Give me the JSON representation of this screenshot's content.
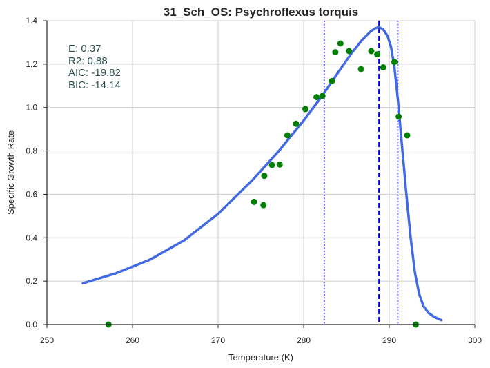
{
  "chart_data": {
    "type": "scatter",
    "title": "31_Sch_OS: Psychroflexus torquis",
    "xlabel": "Temperature (K)",
    "ylabel": "Specific Growth Rate",
    "xlim": [
      250,
      300
    ],
    "ylim": [
      0.0,
      1.4
    ],
    "xticks": [
      250,
      260,
      270,
      280,
      290,
      300
    ],
    "yticks": [
      0.0,
      0.2,
      0.4,
      0.6,
      0.8,
      1.0,
      1.2,
      1.4
    ],
    "grid": true,
    "colors": {
      "points": "#008000",
      "fit": "#4169e1",
      "vlines": "#0000ff",
      "grid": "#cccccc",
      "axes": "#262626",
      "annotation": "#2f4f4f"
    },
    "annotations": [
      "E:  0.37",
      "R2:  0.88",
      "AIC: -19.82",
      "BIC: -14.14"
    ],
    "points": [
      {
        "x": 257.2,
        "y": 0.0
      },
      {
        "x": 274.2,
        "y": 0.565
      },
      {
        "x": 275.3,
        "y": 0.55
      },
      {
        "x": 275.4,
        "y": 0.685
      },
      {
        "x": 276.3,
        "y": 0.735
      },
      {
        "x": 277.2,
        "y": 0.737
      },
      {
        "x": 278.1,
        "y": 0.872
      },
      {
        "x": 279.1,
        "y": 0.925
      },
      {
        "x": 280.2,
        "y": 0.993
      },
      {
        "x": 281.5,
        "y": 1.048
      },
      {
        "x": 282.2,
        "y": 1.053
      },
      {
        "x": 283.3,
        "y": 1.122
      },
      {
        "x": 283.7,
        "y": 1.255
      },
      {
        "x": 284.3,
        "y": 1.295
      },
      {
        "x": 285.3,
        "y": 1.26
      },
      {
        "x": 286.7,
        "y": 1.177
      },
      {
        "x": 287.9,
        "y": 1.26
      },
      {
        "x": 288.6,
        "y": 1.245
      },
      {
        "x": 289.3,
        "y": 1.185
      },
      {
        "x": 290.6,
        "y": 1.21
      },
      {
        "x": 291.1,
        "y": 0.958
      },
      {
        "x": 292.1,
        "y": 0.872
      },
      {
        "x": 293.1,
        "y": 0.0
      }
    ],
    "fit_curve": [
      {
        "x": 254.2,
        "y": 0.19
      },
      {
        "x": 258.0,
        "y": 0.235
      },
      {
        "x": 262.0,
        "y": 0.298
      },
      {
        "x": 266.0,
        "y": 0.387
      },
      {
        "x": 270.0,
        "y": 0.51
      },
      {
        "x": 274.0,
        "y": 0.665
      },
      {
        "x": 277.0,
        "y": 0.795
      },
      {
        "x": 280.0,
        "y": 0.94
      },
      {
        "x": 282.0,
        "y": 1.045
      },
      {
        "x": 284.0,
        "y": 1.16
      },
      {
        "x": 285.5,
        "y": 1.245
      },
      {
        "x": 286.8,
        "y": 1.31
      },
      {
        "x": 287.8,
        "y": 1.35
      },
      {
        "x": 288.4,
        "y": 1.366
      },
      {
        "x": 288.8,
        "y": 1.37
      },
      {
        "x": 289.3,
        "y": 1.36
      },
      {
        "x": 289.8,
        "y": 1.33
      },
      {
        "x": 290.2,
        "y": 1.28
      },
      {
        "x": 290.6,
        "y": 1.19
      },
      {
        "x": 291.0,
        "y": 1.04
      },
      {
        "x": 291.5,
        "y": 0.82
      },
      {
        "x": 292.0,
        "y": 0.6
      },
      {
        "x": 292.5,
        "y": 0.4
      },
      {
        "x": 293.0,
        "y": 0.24
      },
      {
        "x": 293.5,
        "y": 0.14
      },
      {
        "x": 294.0,
        "y": 0.085
      },
      {
        "x": 294.6,
        "y": 0.053
      },
      {
        "x": 295.3,
        "y": 0.034
      },
      {
        "x": 296.1,
        "y": 0.02
      }
    ],
    "vlines": [
      {
        "x": 282.4,
        "style": "dotted"
      },
      {
        "x": 288.8,
        "style": "dashed"
      },
      {
        "x": 291.0,
        "style": "dotted"
      }
    ]
  }
}
